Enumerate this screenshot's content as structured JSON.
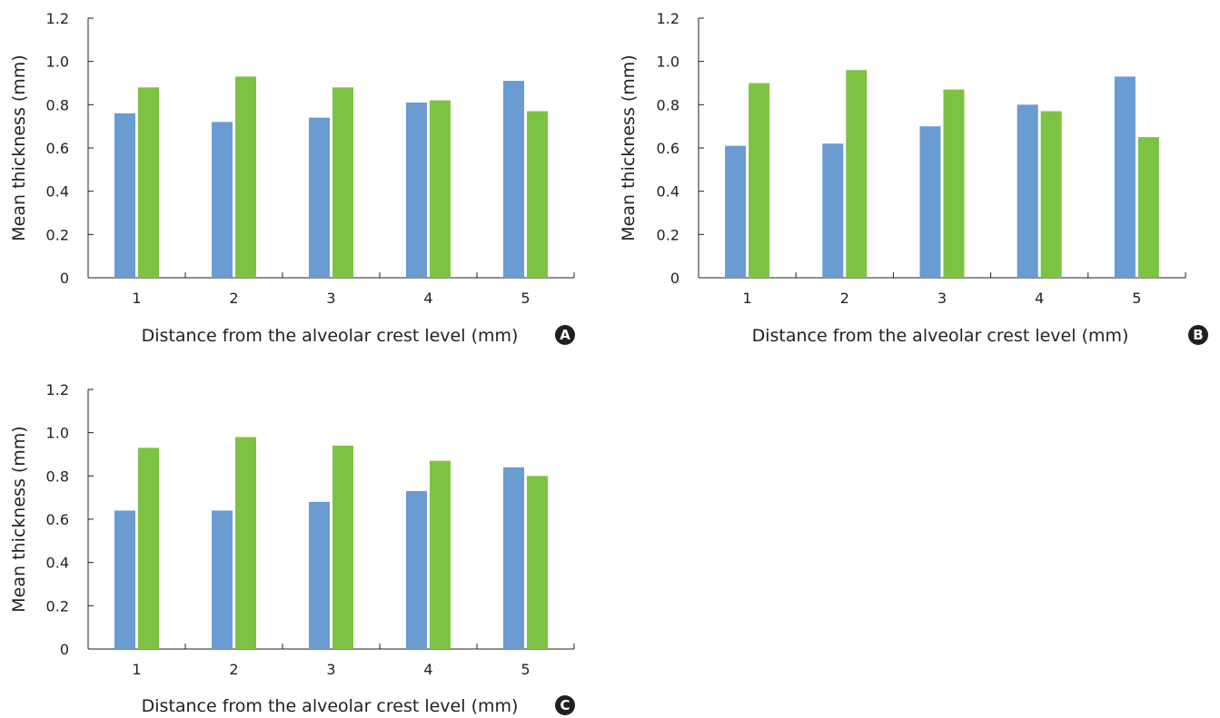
{
  "chart_data": [
    {
      "type": "bar",
      "panel_label": "A",
      "categories": [
        "1",
        "2",
        "3",
        "4",
        "5"
      ],
      "series": [
        {
          "values": [
            0.76,
            0.72,
            0.74,
            0.81,
            0.91
          ],
          "color": "#6a9bd1"
        },
        {
          "values": [
            0.88,
            0.93,
            0.88,
            0.82,
            0.77
          ],
          "color": "#7dc242"
        }
      ],
      "xlabel": "Distance from the alveolar crest level (mm)",
      "ylabel": "Mean thickness (mm)",
      "ylim": [
        0,
        1.2
      ],
      "yticks": [
        "0",
        "0.2",
        "0.4",
        "0.6",
        "0.8",
        "1.0",
        "1.2"
      ]
    },
    {
      "type": "bar",
      "panel_label": "B",
      "categories": [
        "1",
        "2",
        "3",
        "4",
        "5"
      ],
      "series": [
        {
          "values": [
            0.61,
            0.62,
            0.7,
            0.8,
            0.93
          ],
          "color": "#6a9bd1"
        },
        {
          "values": [
            0.9,
            0.96,
            0.87,
            0.77,
            0.65
          ],
          "color": "#7dc242"
        }
      ],
      "xlabel": "Distance from the alveolar crest level (mm)",
      "ylabel": "Mean thickness (mm)",
      "ylim": [
        0,
        1.2
      ],
      "yticks": [
        "0",
        "0.2",
        "0.4",
        "0.6",
        "0.8",
        "1.0",
        "1.2"
      ]
    },
    {
      "type": "bar",
      "panel_label": "C",
      "categories": [
        "1",
        "2",
        "3",
        "4",
        "5"
      ],
      "series": [
        {
          "values": [
            0.64,
            0.64,
            0.68,
            0.73,
            0.84
          ],
          "color": "#6a9bd1"
        },
        {
          "values": [
            0.93,
            0.98,
            0.94,
            0.87,
            0.8
          ],
          "color": "#7dc242"
        }
      ],
      "xlabel": "Distance from the alveolar crest level (mm)",
      "ylabel": "Mean thickness (mm)",
      "ylim": [
        0,
        1.2
      ],
      "yticks": [
        "0",
        "0.2",
        "0.4",
        "0.6",
        "0.8",
        "1.0",
        "1.2"
      ]
    }
  ]
}
